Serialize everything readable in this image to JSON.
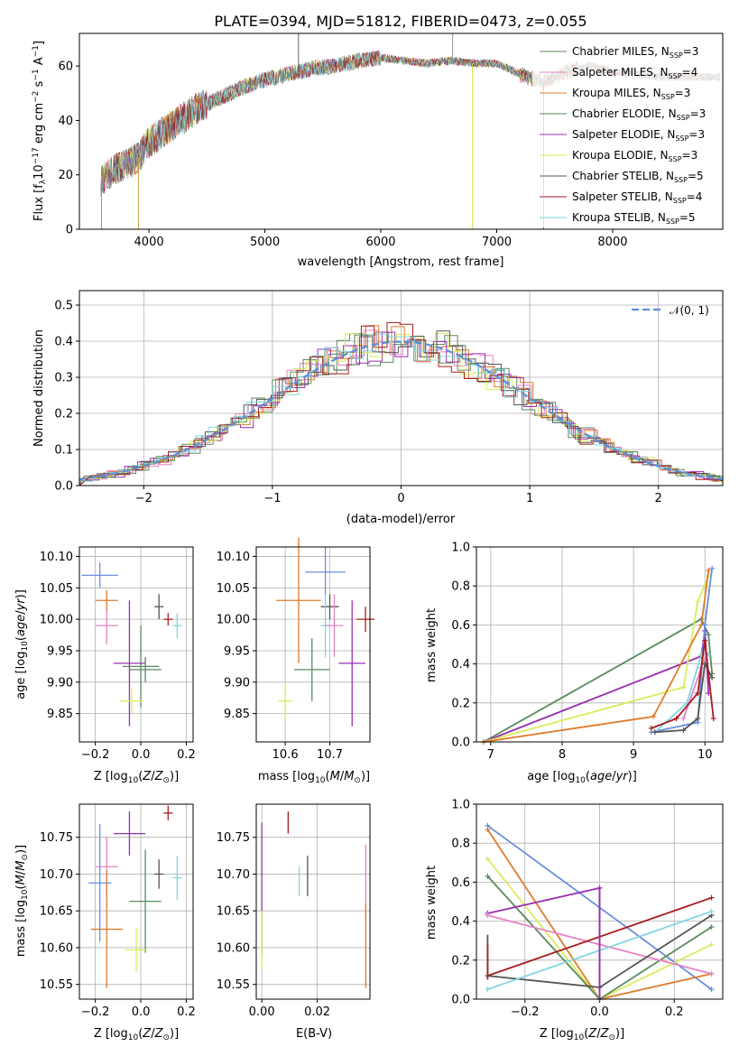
{
  "colors": [
    "#5a8a5e",
    "#d777c8",
    "#e07b2b",
    "#5a8a5e",
    "#9a2fb0",
    "#d8e05a",
    "#555555",
    "#b02020",
    "#7fd6e0"
  ],
  "series_colors": {
    "Chabrier MILES": "#5a8a5e",
    "Salpeter MILES": "#e684c4",
    "Kroupa MILES": "#e07b2b",
    "Chabrier ELODIE": "#5a8a5e",
    "Salpeter ELODIE": "#9a2fb0",
    "Kroupa ELODIE": "#d8ec5a",
    "Chabrier STELIB": "#555555",
    "Salpeter STELIB": "#a61c1c",
    "Kroupa STELIB": "#7fd6e0"
  },
  "chart_data": [
    {
      "type": "line",
      "title": "PLATE=0394, MJD=51812, FIBERID=0473, z=0.055",
      "xlabel": "wavelength [Angstrom, rest frame]",
      "ylabel": "Flux [f_λ 10^-17 erg cm^-2 s^-1 A^-1]",
      "xlim": [
        3400,
        8950
      ],
      "ylim": [
        0,
        72
      ],
      "xticks": [
        "4000",
        "5000",
        "6000",
        "7000",
        "8000"
      ],
      "yticks": [
        "0",
        "20",
        "40",
        "60"
      ],
      "legend_position": "right",
      "legend": [
        {
          "name": "Chabrier MILES, N",
          "sub": "SSP",
          "suffix": "=3"
        },
        {
          "name": "Salpeter MILES, N",
          "sub": "SSP",
          "suffix": "=4"
        },
        {
          "name": "Kroupa MILES, N",
          "sub": "SSP",
          "suffix": "=3"
        },
        {
          "name": "Chabrier ELODIE, N",
          "sub": "SSP",
          "suffix": "=3"
        },
        {
          "name": "Salpeter ELODIE, N",
          "sub": "SSP",
          "suffix": "=3"
        },
        {
          "name": "Kroupa ELODIE, N",
          "sub": "SSP",
          "suffix": "=3"
        },
        {
          "name": "Chabrier STELIB, N",
          "sub": "SSP",
          "suffix": "=5"
        },
        {
          "name": "Salpeter STELIB, N",
          "sub": "SSP",
          "suffix": "=4"
        },
        {
          "name": "Kroupa STELIB, N",
          "sub": "SSP",
          "suffix": "=5"
        }
      ],
      "continuum": {
        "x": [
          3580,
          3700,
          3900,
          4000,
          4200,
          4400,
          4600,
          4800,
          5000,
          5200,
          5400,
          5600,
          5800,
          6000,
          6200,
          6400,
          6600,
          6800,
          7000,
          7200,
          7400,
          7600,
          7800,
          8000,
          8200,
          8400,
          8600,
          8800
        ],
        "y": [
          18,
          22,
          26,
          32,
          38,
          44,
          48,
          52,
          55,
          57,
          59,
          60,
          62,
          63,
          62,
          61,
          62,
          61,
          61,
          57,
          54,
          58,
          60,
          58,
          57,
          56,
          56,
          56
        ]
      }
    },
    {
      "type": "histogram",
      "xlabel": "(data-model)/error",
      "ylabel": "Normed distribution",
      "xlim": [
        -2.5,
        2.5
      ],
      "ylim": [
        0,
        0.54
      ],
      "xticks": [
        "−2",
        "−1",
        "0",
        "1",
        "2"
      ],
      "yticks": [
        "0.0",
        "0.1",
        "0.2",
        "0.3",
        "0.4",
        "0.5"
      ],
      "legend": "𝒩(0, 1)"
    },
    {
      "type": "errorbar",
      "xlabel": "Z [log10(Z/Z⊙)]",
      "ylabel": "age  [log10(age/yr)]",
      "xlim": [
        -0.27,
        0.23
      ],
      "ylim": [
        9.805,
        10.115
      ],
      "xticks": [
        "−0.2",
        "0.0",
        "0.2"
      ],
      "yticks": [
        "9.85",
        "9.90",
        "9.95",
        "10.00",
        "10.05",
        "10.10"
      ],
      "points": [
        {
          "s": "Kroupa STELIB",
          "x": 0.16,
          "y": 9.99,
          "ex": 0.02,
          "ey": 0.02
        },
        {
          "s": "Chabrier STELIB",
          "x": 0.08,
          "y": 10.02,
          "ex": 0.02,
          "ey": 0.02
        },
        {
          "s": "Salpeter STELIB",
          "x": 0.12,
          "y": 10.0,
          "ex": 0.02,
          "ey": 0.01
        },
        {
          "s": "Chabrier MILES",
          "x": 0.0,
          "y": 9.925,
          "ex": 0.08,
          "ey": 0.065
        },
        {
          "s": "Salpeter MILES",
          "x": -0.15,
          "y": 9.99,
          "ex": 0.05,
          "ey": 0.03
        },
        {
          "s": "Kroupa MILES",
          "x": -0.15,
          "y": 10.03,
          "ex": 0.05,
          "ey": 0.016
        },
        {
          "s": "Chabrier ELODIE",
          "x": 0.02,
          "y": 9.92,
          "ex": 0.07,
          "ey": 0.02
        },
        {
          "s": "Salpeter ELODIE",
          "x": -0.05,
          "y": 9.93,
          "ex": 0.07,
          "ey": 0.1
        },
        {
          "s": "Kroupa ELODIE",
          "x": -0.04,
          "y": 9.87,
          "ex": 0.05,
          "ey": 0.02
        },
        {
          "s": "Blue",
          "x": -0.18,
          "y": 10.07,
          "ex": 0.08,
          "ey": 0.02
        }
      ]
    },
    {
      "type": "errorbar",
      "xlabel": "mass [log10(M/M⊙)]",
      "ylabel": "",
      "xlim": [
        10.535,
        10.79
      ],
      "ylim": [
        9.805,
        10.115
      ],
      "xticks": [
        "10.6",
        "10.7"
      ],
      "yticks": [
        "9.85",
        "9.90",
        "9.95",
        "10.00",
        "10.05",
        "10.10"
      ],
      "points": [
        {
          "s": "Blue",
          "x": 10.69,
          "y": 10.075,
          "ex": 0.045,
          "ey": 0.04
        },
        {
          "s": "Kroupa MILES",
          "x": 10.63,
          "y": 10.03,
          "ex": 0.05,
          "ey": 0.1
        },
        {
          "s": "Chabrier STELIB",
          "x": 10.7,
          "y": 10.02,
          "ex": 0.02,
          "ey": 0.02
        },
        {
          "s": "Salpeter STELIB",
          "x": 10.78,
          "y": 10.0,
          "ex": 0.02,
          "ey": 0.02
        },
        {
          "s": "Kroupa STELIB",
          "x": 10.69,
          "y": 9.99,
          "ex": 0.01,
          "ey": 0.05
        },
        {
          "s": "Salpeter MILES",
          "x": 10.71,
          "y": 9.99,
          "ex": 0.02,
          "ey": 0.05
        },
        {
          "s": "Salpeter ELODIE",
          "x": 10.75,
          "y": 9.93,
          "ex": 0.03,
          "ey": 0.1
        },
        {
          "s": "Chabrier ELODIE",
          "x": 10.66,
          "y": 9.92,
          "ex": 0.04,
          "ey": 0.05
        },
        {
          "s": "Kroupa ELODIE",
          "x": 10.6,
          "y": 9.87,
          "ex": 0.015,
          "ey": 0.03
        }
      ]
    },
    {
      "type": "line",
      "xlabel": "age  [log10(age/yr)]",
      "ylabel": "mass weight",
      "xlim": [
        6.8,
        10.25
      ],
      "ylim": [
        0,
        1
      ],
      "xticks": [
        "7",
        "8",
        "9",
        "10"
      ],
      "yticks": [
        "0.0",
        "0.2",
        "0.4",
        "0.6",
        "0.8",
        "1.0"
      ]
    },
    {
      "type": "errorbar",
      "xlabel": "Z [log10(Z/Z⊙)]",
      "ylabel": "mass [log10(M/M⊙)]",
      "xlim": [
        -0.27,
        0.23
      ],
      "ylim": [
        10.53,
        10.795
      ],
      "xticks": [
        "−0.2",
        "0.0",
        "0.2"
      ],
      "yticks": [
        "10.55",
        "10.60",
        "10.65",
        "10.70",
        "10.75"
      ],
      "points": [
        {
          "s": "Salpeter STELIB",
          "x": 0.12,
          "y": 10.783,
          "ex": 0.02,
          "ey": 0.01
        },
        {
          "s": "Salpeter ELODIE",
          "x": -0.05,
          "y": 10.755,
          "ex": 0.07,
          "ey": 0.03
        },
        {
          "s": "Salpeter MILES",
          "x": -0.15,
          "y": 10.71,
          "ex": 0.05,
          "ey": 0.04
        },
        {
          "s": "Chabrier STELIB",
          "x": 0.08,
          "y": 10.7,
          "ex": 0.02,
          "ey": 0.02
        },
        {
          "s": "Kroupa STELIB",
          "x": 0.16,
          "y": 10.695,
          "ex": 0.02,
          "ey": 0.03
        },
        {
          "s": "Blue",
          "x": -0.18,
          "y": 10.688,
          "ex": 0.05,
          "ey": 0.08
        },
        {
          "s": "Chabrier ELODIE",
          "x": 0.02,
          "y": 10.663,
          "ex": 0.07,
          "ey": 0.07
        },
        {
          "s": "Kroupa MILES",
          "x": -0.15,
          "y": 10.625,
          "ex": 0.07,
          "ey": 0.08
        },
        {
          "s": "Kroupa ELODIE",
          "x": -0.02,
          "y": 10.597,
          "ex": 0.05,
          "ey": 0.03
        }
      ]
    },
    {
      "type": "errorbar",
      "xlabel": "E(B-V)",
      "ylabel": "",
      "xlim": [
        -0.002,
        0.039
      ],
      "ylim": [
        10.53,
        10.795
      ],
      "xticks": [
        "0.00",
        "0.02"
      ],
      "yticks": [
        "10.55",
        "10.60",
        "10.65",
        "10.70",
        "10.75"
      ]
    },
    {
      "type": "line",
      "xlabel": "Z [log10(Z/Z⊙)]",
      "ylabel": "mass weight",
      "xlim": [
        -0.33,
        0.33
      ],
      "ylim": [
        0,
        1
      ],
      "xticks": [
        "−0.2",
        "0.0",
        "0.2"
      ],
      "yticks": [
        "0.0",
        "0.2",
        "0.4",
        "0.6",
        "0.8",
        "1.0"
      ]
    }
  ]
}
